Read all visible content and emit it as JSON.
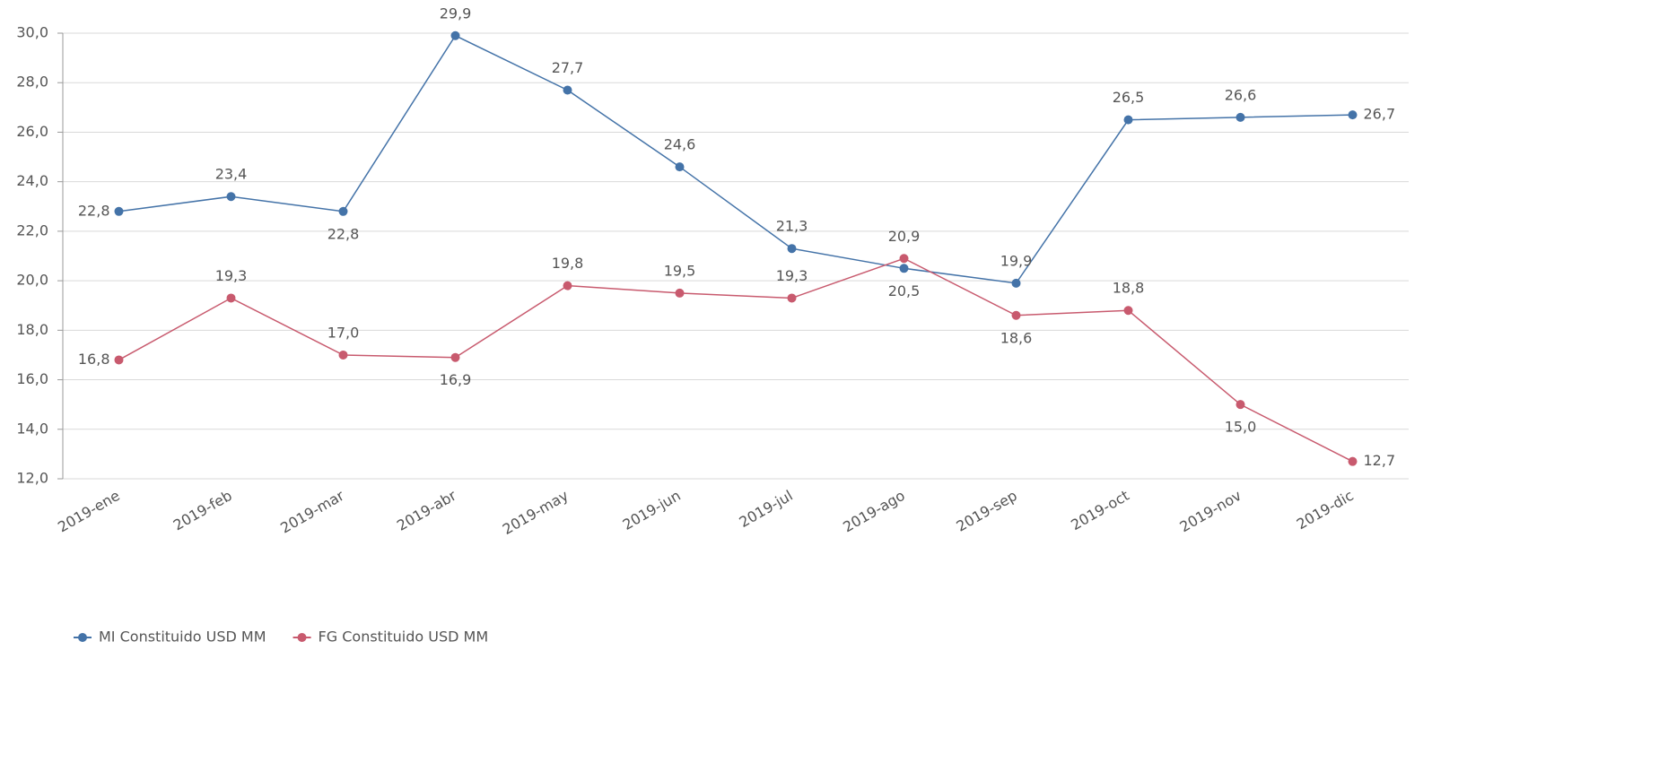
{
  "chart_data": {
    "type": "line",
    "categories": [
      "2019-ene",
      "2019-feb",
      "2019-mar",
      "2019-abr",
      "2019-may",
      "2019-jun",
      "2019-jul",
      "2019-ago",
      "2019-sep",
      "2019-oct",
      "2019-nov",
      "2019-dic"
    ],
    "series": [
      {
        "name": "MI Constituido USD MM",
        "color": "#4473a8",
        "values": [
          22.8,
          23.4,
          22.8,
          29.9,
          27.7,
          24.6,
          21.3,
          20.5,
          19.9,
          26.5,
          26.6,
          26.7
        ],
        "value_labels": [
          "22,8",
          "23,4",
          "22,8",
          "29,9",
          "27,7",
          "24,6",
          "21,3",
          "20,5",
          "19,9",
          "26,5",
          "26,6",
          "26,7"
        ]
      },
      {
        "name": "FG Constituido USD MM",
        "color": "#c85a6e",
        "values": [
          16.8,
          19.3,
          17.0,
          16.9,
          19.8,
          19.5,
          19.3,
          20.9,
          18.6,
          18.8,
          15.0,
          12.7
        ],
        "value_labels": [
          "16,8",
          "19,3",
          "17,0",
          "16,9",
          "19,8",
          "19,5",
          "19,3",
          "20,9",
          "18,6",
          "18,8",
          "15,0",
          "12,7"
        ]
      }
    ],
    "ylim": [
      12,
      30
    ],
    "yticks": [
      {
        "value": 12,
        "label": "12,0"
      },
      {
        "value": 14,
        "label": "14,0"
      },
      {
        "value": 16,
        "label": "16,0"
      },
      {
        "value": 18,
        "label": "18,0"
      },
      {
        "value": 20,
        "label": "20,0"
      },
      {
        "value": 22,
        "label": "22,0"
      },
      {
        "value": 24,
        "label": "24,0"
      },
      {
        "value": 26,
        "label": "26,0"
      },
      {
        "value": 28,
        "label": "28,0"
      },
      {
        "value": 30,
        "label": "30,0"
      }
    ],
    "grid": true,
    "legend": "bottom-left"
  }
}
